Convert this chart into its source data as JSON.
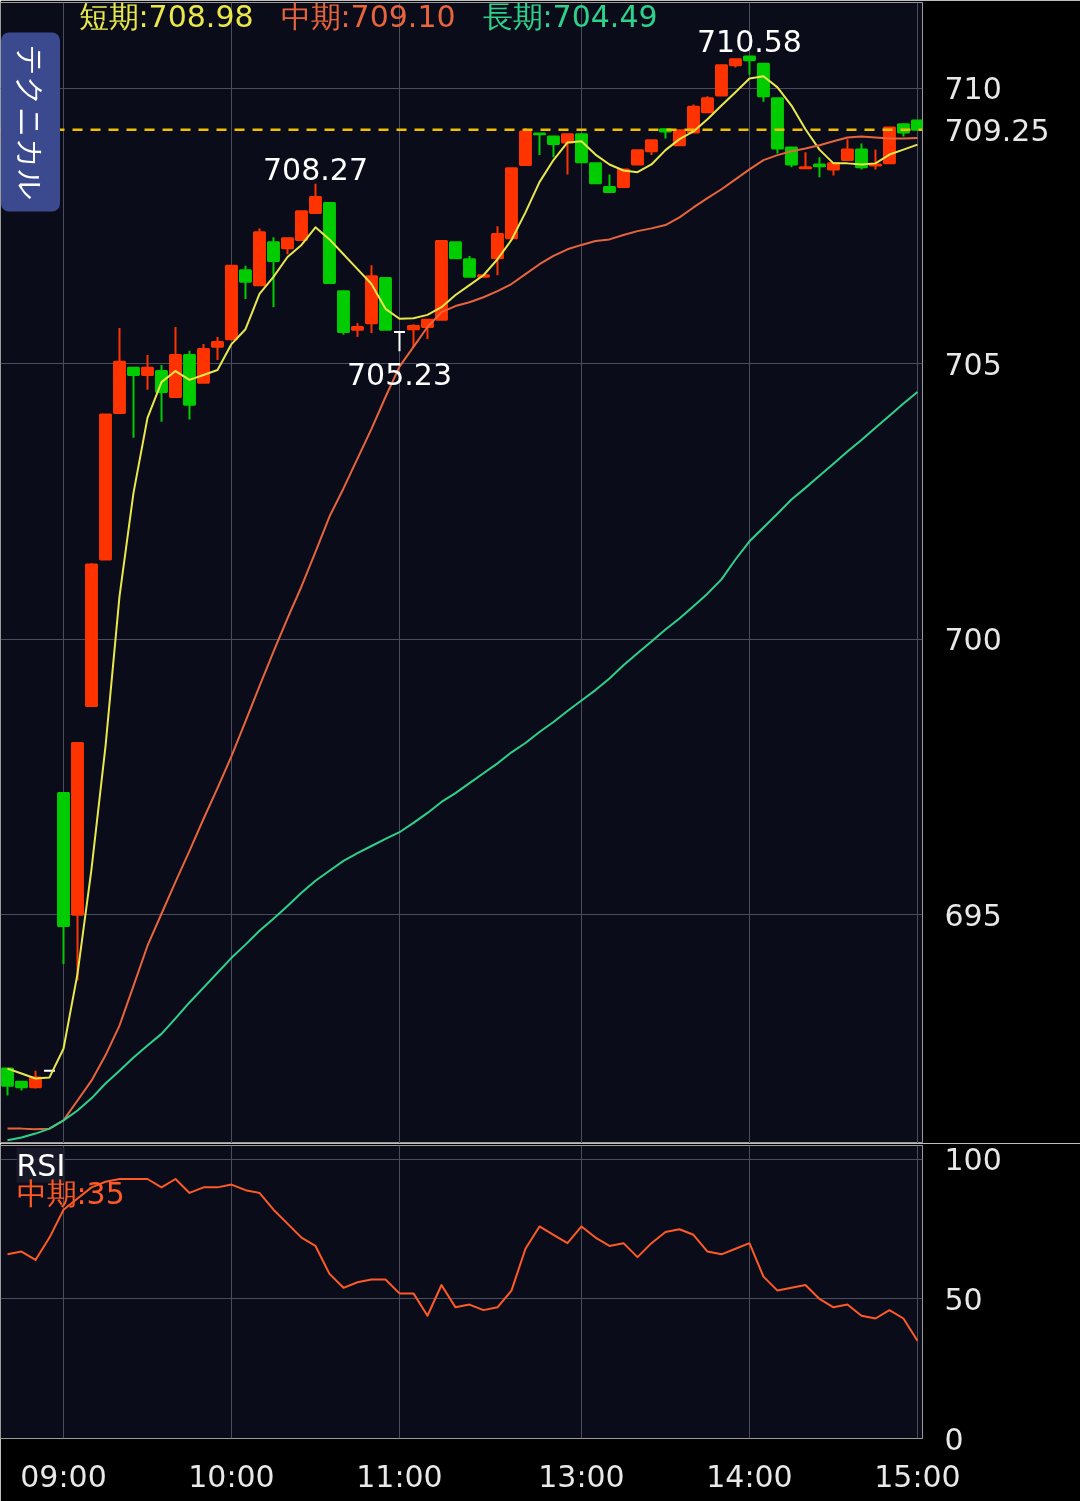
{
  "chart_data": [
    {
      "type": "candlestick",
      "categories": [
        null,
        null,
        null,
        null,
        null,
        null,
        null,
        null,
        null,
        null,
        null,
        null,
        null,
        null,
        null,
        null,
        null,
        null,
        null,
        null,
        null,
        null,
        null,
        null,
        null,
        null,
        null,
        null,
        null,
        null,
        null,
        null,
        null,
        null,
        null,
        null,
        null,
        null,
        null,
        null,
        null,
        null,
        null,
        null,
        null,
        null,
        null,
        null,
        null,
        null,
        null,
        null,
        null,
        null,
        null,
        null,
        null,
        null,
        null,
        null,
        null,
        null,
        null,
        null,
        null,
        null
      ],
      "tick_labels": "y",
      "ylim": [
        690.85,
        711.56
      ],
      "yticks": [
        695,
        700,
        705,
        710
      ],
      "grid": true,
      "legend": "top",
      "ohlc": [
        [
          692.21,
          692.21,
          691.72,
          691.9
        ],
        [
          691.97,
          691.97,
          691.81,
          691.87
        ],
        [
          691.87,
          692.17,
          691.85,
          692.05
        ],
        [
          692.17,
          692.17,
          692.17,
          692.17
        ],
        [
          697.21,
          697.21,
          694.11,
          694.8
        ],
        [
          695.0,
          698.12,
          693.81,
          698.12
        ],
        [
          698.79,
          701.38,
          698.79,
          701.36
        ],
        [
          701.45,
          704.08,
          701.45,
          704.08
        ],
        [
          704.11,
          705.65,
          704.11,
          705.04
        ],
        [
          704.93,
          704.93,
          703.66,
          704.8
        ],
        [
          704.8,
          705.16,
          704.53,
          704.93
        ],
        [
          704.87,
          704.98,
          703.95,
          704.49
        ],
        [
          704.4,
          705.67,
          704.38,
          705.16
        ],
        [
          705.16,
          705.24,
          703.99,
          704.26
        ],
        [
          704.66,
          705.36,
          704.66,
          705.27
        ],
        [
          705.31,
          705.49,
          705.07,
          705.4
        ],
        [
          705.45,
          706.78,
          705.45,
          706.78
        ],
        [
          706.7,
          706.78,
          706.18,
          706.49
        ],
        [
          706.43,
          707.46,
          706.43,
          707.39
        ],
        [
          707.21,
          707.3,
          706.03,
          706.87
        ],
        [
          707.1,
          707.28,
          706.99,
          707.28
        ],
        [
          707.25,
          707.77,
          707.25,
          707.77
        ],
        [
          707.74,
          708.27,
          707.74,
          708.03
        ],
        [
          707.92,
          707.92,
          706.45,
          706.47
        ],
        [
          706.32,
          706.32,
          705.53,
          705.58
        ],
        [
          705.62,
          705.74,
          705.49,
          705.67
        ],
        [
          705.74,
          706.79,
          705.56,
          706.59
        ],
        [
          706.56,
          706.56,
          705.62,
          705.62
        ],
        [
          705.58,
          705.58,
          705.23,
          705.58
        ],
        [
          705.63,
          705.72,
          705.31,
          705.69
        ],
        [
          705.67,
          705.8,
          705.45,
          705.8
        ],
        [
          705.8,
          707.23,
          705.8,
          707.23
        ],
        [
          707.21,
          707.21,
          706.92,
          706.92
        ],
        [
          706.9,
          706.96,
          706.58,
          706.58
        ],
        [
          706.58,
          706.61,
          706.58,
          706.61
        ],
        [
          706.92,
          707.5,
          706.61,
          707.36
        ],
        [
          707.28,
          708.55,
          707.28,
          708.55
        ],
        [
          708.61,
          709.28,
          708.61,
          709.22
        ],
        [
          709.18,
          709.18,
          708.79,
          709.17
        ],
        [
          709.13,
          709.13,
          708.75,
          708.99
        ],
        [
          709.02,
          709.17,
          708.44,
          709.17
        ],
        [
          709.17,
          709.17,
          708.66,
          708.66
        ],
        [
          708.64,
          708.64,
          708.28,
          708.28
        ],
        [
          708.21,
          708.44,
          708.12,
          708.12
        ],
        [
          708.21,
          708.53,
          708.21,
          708.53
        ],
        [
          708.62,
          708.88,
          708.62,
          708.88
        ],
        [
          708.86,
          709.06,
          708.79,
          709.06
        ],
        [
          709.26,
          709.26,
          709.09,
          709.22
        ],
        [
          708.97,
          709.24,
          708.97,
          709.24
        ],
        [
          709.2,
          709.71,
          709.2,
          709.67
        ],
        [
          709.57,
          709.86,
          709.57,
          709.82
        ],
        [
          709.87,
          710.43,
          709.87,
          710.42
        ],
        [
          710.42,
          710.53,
          710.38,
          710.53
        ],
        [
          710.58,
          710.58,
          710.25,
          710.51
        ],
        [
          710.45,
          710.45,
          709.76,
          709.86
        ],
        [
          709.82,
          709.82,
          708.82,
          708.91
        ],
        [
          708.93,
          708.93,
          708.57,
          708.62
        ],
        [
          708.55,
          708.84,
          708.55,
          708.57
        ],
        [
          708.62,
          708.75,
          708.39,
          708.59
        ],
        [
          708.53,
          708.64,
          708.42,
          708.64
        ],
        [
          708.7,
          709.08,
          708.7,
          708.89
        ],
        [
          708.89,
          709.0,
          708.53,
          708.57
        ],
        [
          708.6,
          708.89,
          708.53,
          708.62
        ],
        [
          708.64,
          709.29,
          708.64,
          709.29
        ],
        [
          709.35,
          709.35,
          709.13,
          709.2
        ],
        [
          709.42,
          709.42,
          709.25,
          709.25
        ]
      ],
      "colors": [
        "#00cc00",
        "#00cc00",
        "#ff3300",
        "#ffffff",
        "#00cc00",
        "#ff3300",
        "#ff3300",
        "#ff3300",
        "#ff3300",
        "#00cc00",
        "#ff3300",
        "#00cc00",
        "#ff3300",
        "#00cc00",
        "#ff3300",
        "#ff3300",
        "#ff3300",
        "#00cc00",
        "#ff3300",
        "#00cc00",
        "#ff3300",
        "#ff3300",
        "#ff3300",
        "#00cc00",
        "#00cc00",
        "#ff3300",
        "#ff3300",
        "#00cc00",
        "#ffffff",
        "#ff3300",
        "#ff3300",
        "#ff3300",
        "#00cc00",
        "#00cc00",
        "#ff3300",
        "#ff3300",
        "#ff3300",
        "#ff3300",
        "#00cc00",
        "#00cc00",
        "#ff3300",
        "#00cc00",
        "#00cc00",
        "#00cc00",
        "#ff3300",
        "#ff3300",
        "#ff3300",
        "#00cc00",
        "#ff3300",
        "#ff3300",
        "#ff3300",
        "#ff3300",
        "#ff3300",
        "#00cc00",
        "#00cc00",
        "#00cc00",
        "#00cc00",
        "#ff3300",
        "#00cc00",
        "#ff3300",
        "#ff3300",
        "#00cc00",
        "#ff3300",
        "#ff3300",
        "#00cc00",
        "#00cc00"
      ],
      "series": [
        {
          "type": "line",
          "name": "短期:708.98",
          "color": "#e8e84a",
          "values": [
            692.21,
            692.12,
            692.03,
            692.05,
            692.57,
            693.93,
            695.83,
            698.06,
            700.78,
            702.66,
            704.02,
            704.67,
            704.87,
            704.71,
            704.8,
            704.89,
            705.36,
            705.63,
            706.27,
            706.58,
            706.94,
            707.16,
            707.48,
            707.26,
            706.99,
            706.72,
            706.45,
            706.0,
            705.82,
            705.83,
            705.89,
            706.03,
            706.25,
            706.43,
            706.61,
            706.9,
            707.25,
            707.75,
            708.3,
            708.7,
            709.02,
            709.04,
            708.8,
            708.62,
            708.51,
            708.48,
            708.62,
            708.88,
            709.08,
            709.22,
            709.44,
            709.69,
            709.93,
            710.18,
            710.22,
            710.02,
            709.69,
            709.26,
            708.89,
            708.64,
            708.64,
            708.62,
            708.64,
            708.8,
            708.89,
            708.98
          ]
        },
        {
          "type": "line",
          "name": "中期:709.10",
          "color": "#e8643c",
          "values": [
            691.12,
            691.12,
            691.11,
            691.12,
            691.27,
            691.63,
            691.99,
            692.45,
            692.99,
            693.71,
            694.44,
            695.02,
            695.6,
            696.16,
            696.74,
            697.3,
            697.88,
            698.51,
            699.15,
            699.78,
            700.38,
            700.96,
            701.59,
            702.23,
            702.74,
            703.28,
            703.82,
            704.4,
            704.95,
            705.31,
            705.67,
            705.94,
            706.05,
            706.12,
            706.21,
            706.32,
            706.45,
            706.63,
            706.81,
            706.96,
            707.08,
            707.16,
            707.23,
            707.26,
            707.34,
            707.41,
            707.46,
            707.52,
            707.66,
            707.84,
            708.01,
            708.17,
            708.35,
            708.53,
            708.7,
            708.79,
            708.86,
            708.91,
            708.97,
            709.04,
            709.11,
            709.13,
            709.11,
            709.09,
            709.09,
            709.1
          ]
        },
        {
          "type": "line",
          "name": "長期:704.49",
          "color": "#2ed18a",
          "values": [
            690.91,
            690.96,
            691.03,
            691.12,
            691.27,
            691.45,
            691.67,
            691.94,
            692.17,
            692.41,
            692.63,
            692.84,
            693.12,
            693.41,
            693.68,
            693.95,
            694.22,
            694.46,
            694.71,
            694.93,
            695.16,
            695.4,
            695.62,
            695.8,
            695.98,
            696.12,
            696.25,
            696.38,
            696.5,
            696.67,
            696.85,
            697.05,
            697.21,
            697.39,
            697.57,
            697.75,
            697.95,
            698.12,
            698.32,
            698.5,
            698.7,
            698.89,
            699.08,
            699.29,
            699.53,
            699.75,
            699.96,
            700.18,
            700.38,
            700.6,
            700.83,
            701.09,
            701.45,
            701.78,
            702.03,
            702.28,
            702.54,
            702.75,
            702.97,
            703.19,
            703.41,
            703.62,
            703.84,
            704.06,
            704.28,
            704.49
          ]
        }
      ],
      "ref_lines": [
        {
          "axis": "y",
          "value": 709.25,
          "label": "709.25",
          "color": "#f0c000",
          "line_style": "dashed"
        }
      ],
      "annotations": [
        "テクニカル",
        {
          "text": "708.27",
          "y": 708.27
        },
        {
          "text": "705.23",
          "y": 705.23
        },
        {
          "text": "710.58",
          "y": 710.58
        }
      ]
    },
    {
      "type": "line",
      "title": "RSI",
      "categories": [
        null,
        null,
        null,
        null,
        "09:00",
        null,
        null,
        null,
        null,
        null,
        null,
        null,
        null,
        null,
        null,
        null,
        "10:00",
        null,
        null,
        null,
        null,
        null,
        null,
        null,
        null,
        null,
        null,
        null,
        "11:00",
        null,
        null,
        null,
        null,
        null,
        null,
        null,
        null,
        null,
        null,
        null,
        null,
        "13:00",
        null,
        null,
        null,
        null,
        null,
        null,
        null,
        null,
        null,
        null,
        null,
        "14:00",
        null,
        null,
        null,
        null,
        null,
        null,
        null,
        null,
        null,
        null,
        null,
        "15:00"
      ],
      "ylim": [
        0,
        105
      ],
      "yticks": [
        0,
        50,
        100
      ],
      "grid": true,
      "legend": "top left",
      "series": [
        {
          "name": "中期:35",
          "color": "#ff5a26",
          "values": [
            66,
            67,
            64,
            72,
            82,
            86,
            90,
            92,
            93,
            93,
            93,
            90,
            93,
            88,
            90,
            90,
            91,
            89,
            88,
            82,
            77,
            72,
            69,
            59,
            54,
            56,
            57,
            57,
            52,
            52,
            44,
            55,
            47,
            48,
            46,
            47,
            53,
            68,
            76,
            73,
            70,
            76,
            72,
            69,
            70,
            65,
            70,
            74,
            75,
            73,
            67,
            66,
            68,
            70,
            58,
            53,
            54,
            55,
            50,
            47,
            48,
            44,
            43,
            46,
            43,
            35
          ]
        }
      ]
    }
  ]
}
